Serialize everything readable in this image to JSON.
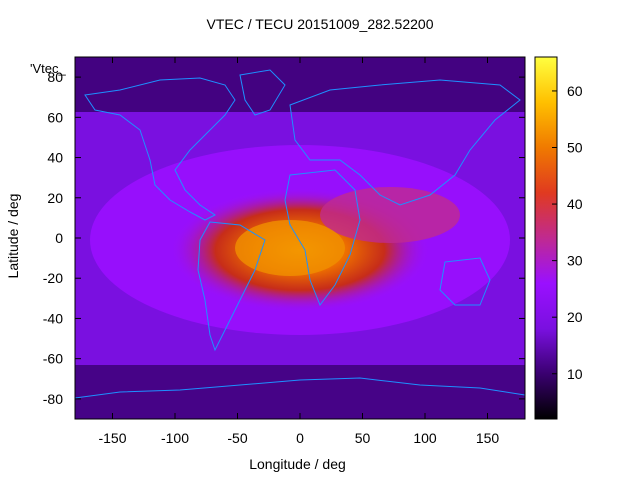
{
  "chart_data": {
    "type": "heatmap",
    "title": "VTEC / TECU 20151009_282.52200",
    "xlabel": "Longitude / deg",
    "ylabel": "Latitude / deg",
    "overlay_label": "'Vtec_",
    "xlim": [
      -180,
      180
    ],
    "ylim": [
      -90,
      90
    ],
    "xticks": [
      -150,
      -100,
      -50,
      0,
      50,
      100,
      150
    ],
    "yticks": [
      -80,
      -60,
      -40,
      -20,
      0,
      20,
      40,
      60,
      80
    ],
    "colorbar": {
      "range": [
        2,
        66
      ],
      "ticks": [
        10,
        20,
        30,
        40,
        50,
        60
      ],
      "colormap": [
        "#000000",
        "#3a0070",
        "#7a10e0",
        "#9a10ff",
        "#c02a90",
        "#e03a20",
        "#f07a00",
        "#ffc000",
        "#ffff40"
      ]
    },
    "coastline_color": "#1e90ff",
    "grid": false,
    "features": [
      {
        "name": "equatorial anomaly peak",
        "lon": 0,
        "lat": 0,
        "value": 55
      },
      {
        "name": "background level",
        "value": 10
      }
    ]
  }
}
